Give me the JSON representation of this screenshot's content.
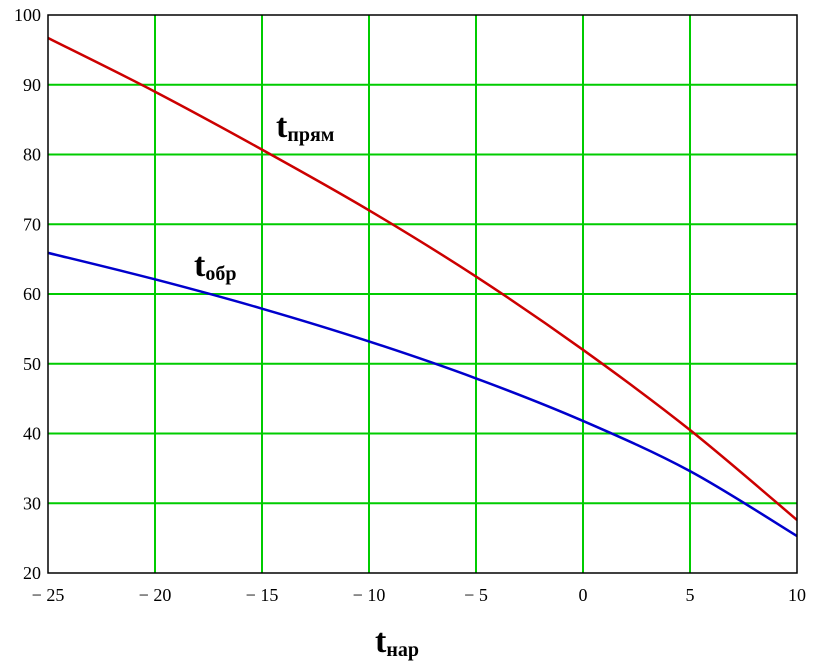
{
  "chart_data": {
    "type": "line",
    "xlabel": {
      "main": "t",
      "sub": "нар"
    },
    "ylabel": "",
    "xlim": [
      -25,
      10
    ],
    "ylim": [
      20,
      100
    ],
    "x_ticks": [
      -25,
      -20,
      -15,
      -10,
      -5,
      0,
      5,
      10
    ],
    "x_tick_labels": [
      "− 25",
      "− 20",
      "− 15",
      "− 10",
      "− 5",
      "0",
      "5",
      "10"
    ],
    "y_ticks": [
      20,
      30,
      40,
      50,
      60,
      70,
      80,
      90,
      100
    ],
    "y_tick_labels": [
      "20",
      "30",
      "40",
      "50",
      "60",
      "70",
      "80",
      "90",
      "100"
    ],
    "grid": true,
    "grid_color": "#00cc00",
    "series": [
      {
        "name": {
          "main": "t",
          "sub": "прям"
        },
        "color": "#cc0000",
        "x": [
          -25,
          -20,
          -15,
          -10,
          -5,
          0,
          5,
          10
        ],
        "y": [
          96.7,
          89.0,
          80.7,
          72.0,
          62.5,
          52.0,
          40.5,
          27.6
        ]
      },
      {
        "name": {
          "main": "t",
          "sub": "обр"
        },
        "color": "#0000cc",
        "x": [
          -25,
          -20,
          -15,
          -10,
          -5,
          0,
          5,
          10
        ],
        "y": [
          65.9,
          62.1,
          57.9,
          53.2,
          47.9,
          41.8,
          34.6,
          25.3
        ]
      }
    ]
  }
}
